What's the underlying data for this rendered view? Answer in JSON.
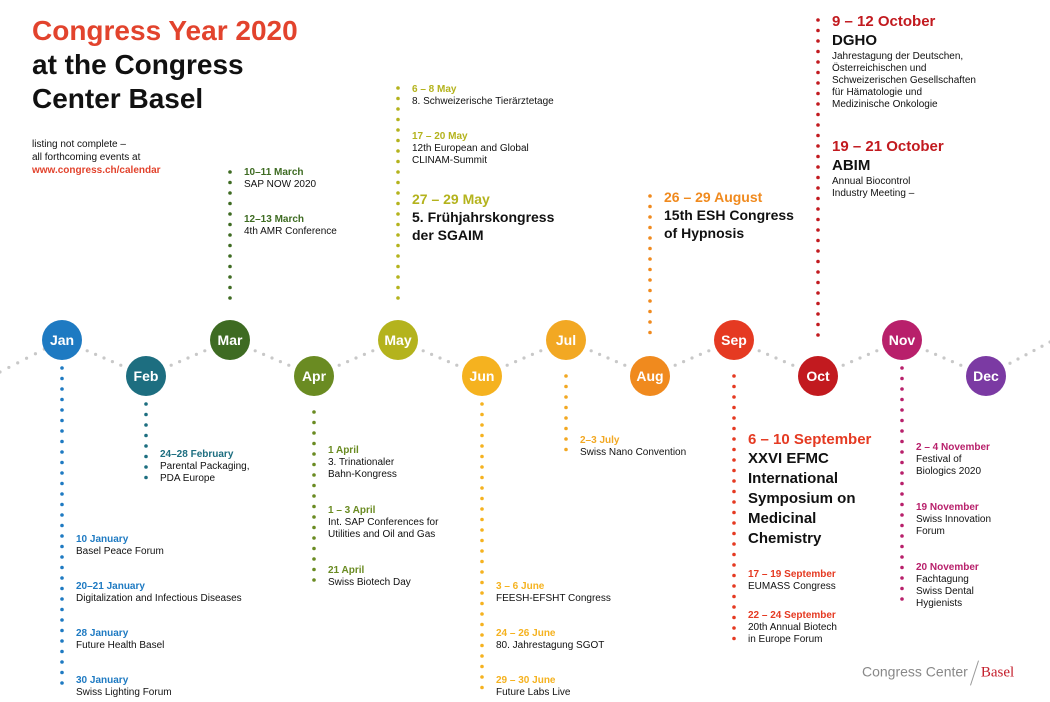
{
  "title": {
    "line1": "Congress Year 2020",
    "line2": "at the Congress",
    "line3": "Center Basel"
  },
  "note": {
    "line1": "listing not complete –",
    "line2": "all forthcoming events at",
    "link": "www.congress.ch/calendar"
  },
  "months": [
    {
      "label": "Jan",
      "color": "#1e7ac2"
    },
    {
      "label": "Feb",
      "color": "#1d6e80"
    },
    {
      "label": "Mar",
      "color": "#3e6b22"
    },
    {
      "label": "Apr",
      "color": "#6a8b22"
    },
    {
      "label": "May",
      "color": "#b4b31d"
    },
    {
      "label": "Jun",
      "color": "#f5b21f"
    },
    {
      "label": "Jul",
      "color": "#f2a823"
    },
    {
      "label": "Aug",
      "color": "#f08a1e"
    },
    {
      "label": "Sep",
      "color": "#e53a22"
    },
    {
      "label": "Oct",
      "color": "#c21a1f"
    },
    {
      "label": "Nov",
      "color": "#b8206b"
    },
    {
      "label": "Dec",
      "color": "#7b3aa3"
    }
  ],
  "events": {
    "jan": [
      {
        "date": "10 January",
        "name": "Basel Peace Forum"
      },
      {
        "date": "20–21 January",
        "name": "Digitalization and Infectious Diseases"
      },
      {
        "date": "28 January",
        "name": "Future Health Basel"
      },
      {
        "date": "30 January",
        "name": "Swiss Lighting Forum"
      }
    ],
    "feb": [
      {
        "date": "24–28 February",
        "name1": "Parental Packaging,",
        "name2": "PDA Europe"
      }
    ],
    "mar": [
      {
        "date": "10–11 March",
        "name": "SAP NOW 2020"
      },
      {
        "date": "12–13 March",
        "name": "4th AMR Conference"
      }
    ],
    "apr": [
      {
        "date": "1 April",
        "name1": "3. Trinationaler",
        "name2": "Bahn-Kongress"
      },
      {
        "date": "1 – 3 April",
        "name1": "Int. SAP Conferences for",
        "name2": "Utilities and Oil and Gas"
      },
      {
        "date": "21 April",
        "name": "Swiss Biotech Day"
      }
    ],
    "may": [
      {
        "date": "6 – 8 May",
        "name": "8. Schweizerische Tierärztetage"
      },
      {
        "date": "17 – 20 May",
        "name1": "12th European and Global",
        "name2": "CLINAM-Summit"
      },
      {
        "date": "27 – 29 May",
        "name1": "5. Frühjahrskongress",
        "name2": "der SGAIM"
      }
    ],
    "jun": [
      {
        "date": "3 – 6 June",
        "name": "FEESH-EFSHT Congress"
      },
      {
        "date": "24 – 26 June",
        "name": "80. Jahrestagung SGOT"
      },
      {
        "date": "29 – 30 June",
        "name": "Future Labs Live"
      }
    ],
    "jul": [
      {
        "date": "2–3 July",
        "name": "Swiss Nano Convention"
      }
    ],
    "aug": [
      {
        "date": "26 – 29 August",
        "name1": "15th ESH Congress",
        "name2": "of Hypnosis"
      }
    ],
    "sep": [
      {
        "date": "6 – 10 September",
        "name1": "XXVI EFMC",
        "name2": "International",
        "name3": "Symposium on",
        "name4": "Medicinal",
        "name5": "Chemistry"
      },
      {
        "date": "17 – 19 September",
        "name": "EUMASS Congress"
      },
      {
        "date": "22 – 24 September",
        "name1": "20th Annual Biotech",
        "name2": "in Europe Forum"
      }
    ],
    "oct": [
      {
        "date": "9 – 12 October",
        "title": "DGHO",
        "name1": "Jahrestagung der Deutschen,",
        "name2": "Österreichischen und",
        "name3": "Schweizerischen Gesellschaften",
        "name4": "für Hämatologie und",
        "name5": "Medizinische Onkologie"
      },
      {
        "date": "19 – 21 October",
        "title": "ABIM",
        "name1": "Annual Biocontrol",
        "name2": "Industry Meeting –"
      }
    ],
    "nov": [
      {
        "date": "2 – 4 November",
        "name1": "Festival of",
        "name2": "Biologics 2020"
      },
      {
        "date": "19 November",
        "name1": "Swiss Innovation",
        "name2": "Forum"
      },
      {
        "date": "20 November",
        "name1": "Fachtagung",
        "name2": "Swiss Dental",
        "name3": "Hygienists"
      }
    ]
  },
  "logo": {
    "left": "Congress Center",
    "right": "Basel"
  }
}
